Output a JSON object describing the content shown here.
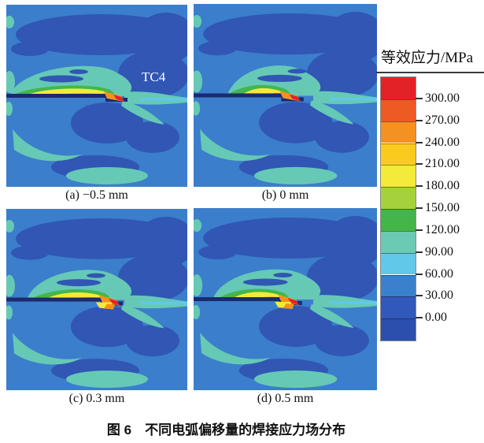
{
  "figure": {
    "caption": "图 6　不同电弧偏移量的焊接应力场分布"
  },
  "legend": {
    "title": "等效应力/MPa",
    "tick_labels": [
      "300.00",
      "270.00",
      "240.00",
      "210.00",
      "180.00",
      "150.00",
      "120.00",
      "90.00",
      "60.00",
      "30.00",
      "0.00"
    ],
    "band_colors": [
      "#e32227",
      "#ee5a24",
      "#f59120",
      "#fbca1f",
      "#f3ea3a",
      "#a5d13c",
      "#44b549",
      "#6bcab2",
      "#61c8ea",
      "#3b80cb",
      "#3059bb",
      "#2c4fae"
    ]
  },
  "panels": [
    {
      "id": "a",
      "label": "(a) −0.5 mm",
      "annotation": "TC4"
    },
    {
      "id": "b",
      "label": "(b) 0 mm",
      "annotation": ""
    },
    {
      "id": "c",
      "label": "(c) 0.3 mm",
      "annotation": ""
    },
    {
      "id": "d",
      "label": "(d) 0.5 mm",
      "annotation": ""
    }
  ],
  "field_colors": {
    "background": "#3b7ecb",
    "low_stress": "#3156b4",
    "weld_line": "#1b2a6e",
    "teal": "#66c9b5",
    "cyan": "#61c8ea",
    "green": "#45b649",
    "yellow": "#f3e93a",
    "orange": "#f59120",
    "red": "#e32227"
  },
  "chart_data": {
    "type": "heatmap",
    "title": "图 6　不同电弧偏移量的焊接应力场分布",
    "legend_title": "等效应力/MPa",
    "colorbar": {
      "unit": "MPa",
      "orientation": "vertical",
      "tick_values": [
        300.0,
        270.0,
        240.0,
        210.0,
        180.0,
        150.0,
        120.0,
        90.0,
        60.0,
        30.0,
        0.0
      ],
      "band_colors_top_to_bottom": [
        "#e32227",
        "#ee5a24",
        "#f59120",
        "#fbca1f",
        "#f3ea3a",
        "#a5d13c",
        "#44b549",
        "#6bcab2",
        "#61c8ea",
        "#3b80cb",
        "#3059bb",
        "#2c4fae"
      ]
    },
    "panels": [
      {
        "label": "(a) −0.5 mm",
        "arc_offset_mm": -0.5,
        "annotation": "TC4"
      },
      {
        "label": "(b) 0 mm",
        "arc_offset_mm": 0,
        "annotation": ""
      },
      {
        "label": "(c) 0.3 mm",
        "arc_offset_mm": 0.3,
        "annotation": ""
      },
      {
        "label": "(d) 0.5 mm",
        "arc_offset_mm": 0.5,
        "annotation": ""
      }
    ]
  }
}
